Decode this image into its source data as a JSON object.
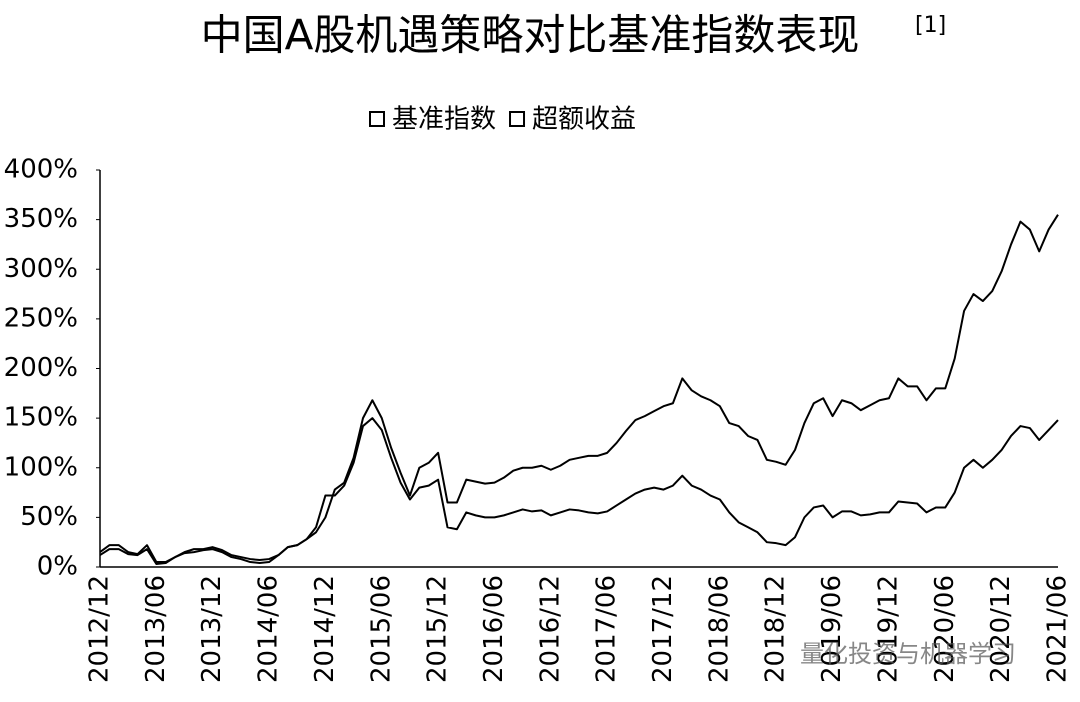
{
  "chart_data": {
    "type": "line",
    "title": "中国A股机遇策略对比基准指数表现",
    "title_note": "[1]",
    "watermark": "量化投资与机器学习",
    "categories": [
      "2012/12",
      null,
      null,
      null,
      null,
      null,
      "2013/06",
      null,
      null,
      null,
      null,
      null,
      "2013/12",
      null,
      null,
      null,
      null,
      null,
      "2014/06",
      null,
      null,
      null,
      null,
      null,
      "2014/12",
      null,
      null,
      null,
      null,
      null,
      "2015/06",
      null,
      null,
      null,
      null,
      null,
      "2015/12",
      null,
      null,
      null,
      null,
      null,
      "2016/06",
      null,
      null,
      null,
      null,
      null,
      "2016/12",
      null,
      null,
      null,
      null,
      null,
      "2017/06",
      null,
      null,
      null,
      null,
      null,
      "2017/12",
      null,
      null,
      null,
      null,
      null,
      "2018/06",
      null,
      null,
      null,
      null,
      null,
      "2018/12",
      null,
      null,
      null,
      null,
      null,
      "2019/06",
      null,
      null,
      null,
      null,
      null,
      "2019/12",
      null,
      null,
      null,
      null,
      null,
      "2020/06",
      null,
      null,
      null,
      null,
      null,
      "2020/12",
      null,
      null,
      null,
      null,
      null,
      "2021/06"
    ],
    "series": [
      {
        "name": "基准指数",
        "color": "#000000",
        "values": [
          12,
          18,
          18,
          13,
          12,
          18,
          3,
          4,
          10,
          14,
          15,
          17,
          18,
          15,
          10,
          8,
          5,
          4,
          5,
          12,
          20,
          22,
          28,
          40,
          72,
          72,
          82,
          105,
          142,
          150,
          138,
          110,
          85,
          68,
          80,
          82,
          88,
          40,
          38,
          55,
          52,
          50,
          50,
          52,
          55,
          58,
          56,
          57,
          52,
          55,
          58,
          57,
          55,
          54,
          56,
          62,
          68,
          74,
          78,
          80,
          78,
          82,
          92,
          82,
          78,
          72,
          68,
          55,
          45,
          40,
          35,
          25,
          24,
          22,
          30,
          50,
          60,
          62,
          50,
          56,
          56,
          52,
          53,
          55,
          55,
          66,
          65,
          64,
          55,
          60,
          60,
          75,
          100,
          108,
          100,
          108,
          118,
          132,
          142,
          140,
          128,
          138,
          148
        ]
      },
      {
        "name": "超额收益",
        "color": "#000000",
        "values": [
          15,
          22,
          22,
          15,
          13,
          22,
          5,
          5,
          10,
          15,
          18,
          18,
          20,
          17,
          12,
          10,
          8,
          7,
          8,
          12,
          20,
          22,
          28,
          35,
          50,
          78,
          85,
          110,
          150,
          168,
          150,
          120,
          95,
          72,
          100,
          105,
          115,
          65,
          65,
          88,
          86,
          84,
          85,
          90,
          97,
          100,
          100,
          102,
          98,
          102,
          108,
          110,
          112,
          112,
          115,
          125,
          137,
          148,
          152,
          157,
          162,
          165,
          190,
          178,
          172,
          168,
          162,
          145,
          142,
          132,
          128,
          108,
          106,
          103,
          118,
          145,
          165,
          170,
          152,
          168,
          165,
          158,
          163,
          168,
          170,
          190,
          182,
          182,
          168,
          180,
          180,
          210,
          258,
          275,
          268,
          278,
          298,
          325,
          348,
          340,
          318,
          340,
          355
        ]
      }
    ],
    "ylim": [
      0,
      400
    ],
    "yticks": [
      {
        "value": 0,
        "label": "0%"
      },
      {
        "value": 50,
        "label": "50%"
      },
      {
        "value": 100,
        "label": "100%"
      },
      {
        "value": 150,
        "label": "150%"
      },
      {
        "value": 200,
        "label": "200%"
      },
      {
        "value": 250,
        "label": "250%"
      },
      {
        "value": 300,
        "label": "300%"
      },
      {
        "value": 350,
        "label": "350%"
      },
      {
        "value": 400,
        "label": "400%"
      }
    ],
    "grid": false,
    "legend": "top"
  }
}
